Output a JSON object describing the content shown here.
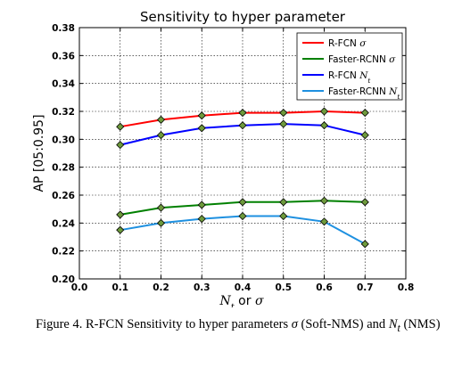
{
  "chart_data": {
    "type": "line",
    "title": "Sensitivity to hyper parameter",
    "xlabel_prefix": "N",
    "xlabel_sub": "t",
    "xlabel_suffix": " or ",
    "xlabel_sigma": "σ",
    "ylabel": "AP [05:0.95]",
    "xlim": [
      0.0,
      0.8
    ],
    "ylim": [
      0.2,
      0.38
    ],
    "xticks": [
      "0.0",
      "0.1",
      "0.2",
      "0.3",
      "0.4",
      "0.5",
      "0.6",
      "0.7",
      "0.8"
    ],
    "yticks": [
      "0.20",
      "0.22",
      "0.24",
      "0.26",
      "0.28",
      "0.30",
      "0.32",
      "0.34",
      "0.36",
      "0.38"
    ],
    "grid": true,
    "legend_position": "top-right",
    "x": [
      0.1,
      0.2,
      0.3,
      0.4,
      0.5,
      0.6,
      0.7
    ],
    "series": [
      {
        "name": "R-FCN ",
        "symbol": "σ",
        "symbol_sub": "",
        "color": "#ff0000",
        "values": [
          0.309,
          0.314,
          0.317,
          0.319,
          0.319,
          0.32,
          0.319
        ]
      },
      {
        "name": "Faster-RCNN ",
        "symbol": "σ",
        "symbol_sub": "",
        "color": "#008000",
        "values": [
          0.246,
          0.251,
          0.253,
          0.255,
          0.255,
          0.256,
          0.255
        ]
      },
      {
        "name": "R-FCN ",
        "symbol": "N",
        "symbol_sub": "t",
        "color": "#0000ff",
        "values": [
          0.296,
          0.303,
          0.308,
          0.31,
          0.311,
          0.31,
          0.303
        ]
      },
      {
        "name": "Faster-RCNN ",
        "symbol": "N",
        "symbol_sub": "t",
        "color": "#1e90e0",
        "values": [
          0.235,
          0.24,
          0.243,
          0.245,
          0.245,
          0.241,
          0.225
        ]
      }
    ],
    "marker_color": "#6e9a3c"
  },
  "caption": {
    "text_1": "Figure 4. R-FCN Sensitivity to hyper parameters ",
    "sigma": "σ",
    "text_2": " (Soft-NMS) and ",
    "n": "N",
    "n_sub": "t",
    "text_3": " (NMS)"
  }
}
